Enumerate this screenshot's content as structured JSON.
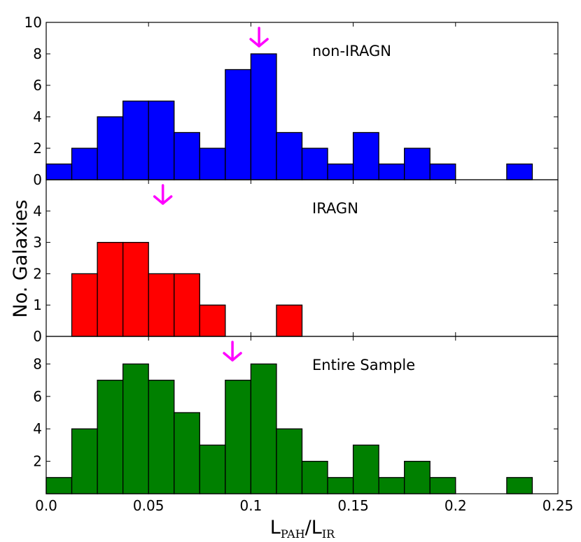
{
  "chart_data": {
    "type": "bar",
    "subtype": "stacked-panel-histogram",
    "xlabel": {
      "main": "L",
      "sub_num": "PAH",
      "slash": "/",
      "main2": "L",
      "sub_den": "IR"
    },
    "ylabel": "No. Galaxies",
    "xlim": [
      0.0,
      0.25
    ],
    "xticks": [
      "0.0",
      "0.05",
      "0.1",
      "0.15",
      "0.2",
      "0.25"
    ],
    "xtick_values": [
      0.0,
      0.05,
      0.1,
      0.15,
      0.2,
      0.25
    ],
    "bin_edges": [
      0.0,
      0.0125,
      0.025,
      0.0375,
      0.05,
      0.0625,
      0.075,
      0.0875,
      0.1,
      0.1125,
      0.125,
      0.1375,
      0.15,
      0.1625,
      0.175,
      0.1875,
      0.2,
      0.2125,
      0.225,
      0.2375
    ],
    "marker_color": "#ff00ff",
    "panels": [
      {
        "label": "non-IRAGN",
        "color": "#0000ff",
        "ylim": [
          0,
          10
        ],
        "yticks": [
          "0",
          "2",
          "4",
          "6",
          "8",
          "10"
        ],
        "ytick_values": [
          0,
          2,
          4,
          6,
          8,
          10
        ],
        "counts": [
          1,
          2,
          4,
          5,
          5,
          3,
          2,
          7,
          8,
          3,
          2,
          1,
          3,
          1,
          2,
          1,
          0,
          0,
          1
        ],
        "median_marker": 0.104
      },
      {
        "label": "IRAGN",
        "color": "#ff0000",
        "ylim": [
          0,
          5
        ],
        "yticks": [
          "0",
          "1",
          "2",
          "3",
          "4"
        ],
        "ytick_values": [
          0,
          1,
          2,
          3,
          4
        ],
        "counts": [
          0,
          2,
          3,
          3,
          2,
          2,
          1,
          0,
          0,
          1,
          0,
          0,
          0,
          0,
          0,
          0,
          0,
          0,
          0
        ],
        "median_marker": 0.057
      },
      {
        "label": "Entire Sample",
        "color": "#008000",
        "ylim": [
          0,
          9.7
        ],
        "yticks": [
          "2",
          "4",
          "6",
          "8"
        ],
        "ytick_values": [
          2,
          4,
          6,
          8
        ],
        "counts": [
          1,
          4,
          7,
          8,
          7,
          5,
          3,
          7,
          8,
          4,
          2,
          1,
          3,
          1,
          2,
          1,
          0,
          0,
          1
        ],
        "median_marker": 0.091
      }
    ]
  }
}
